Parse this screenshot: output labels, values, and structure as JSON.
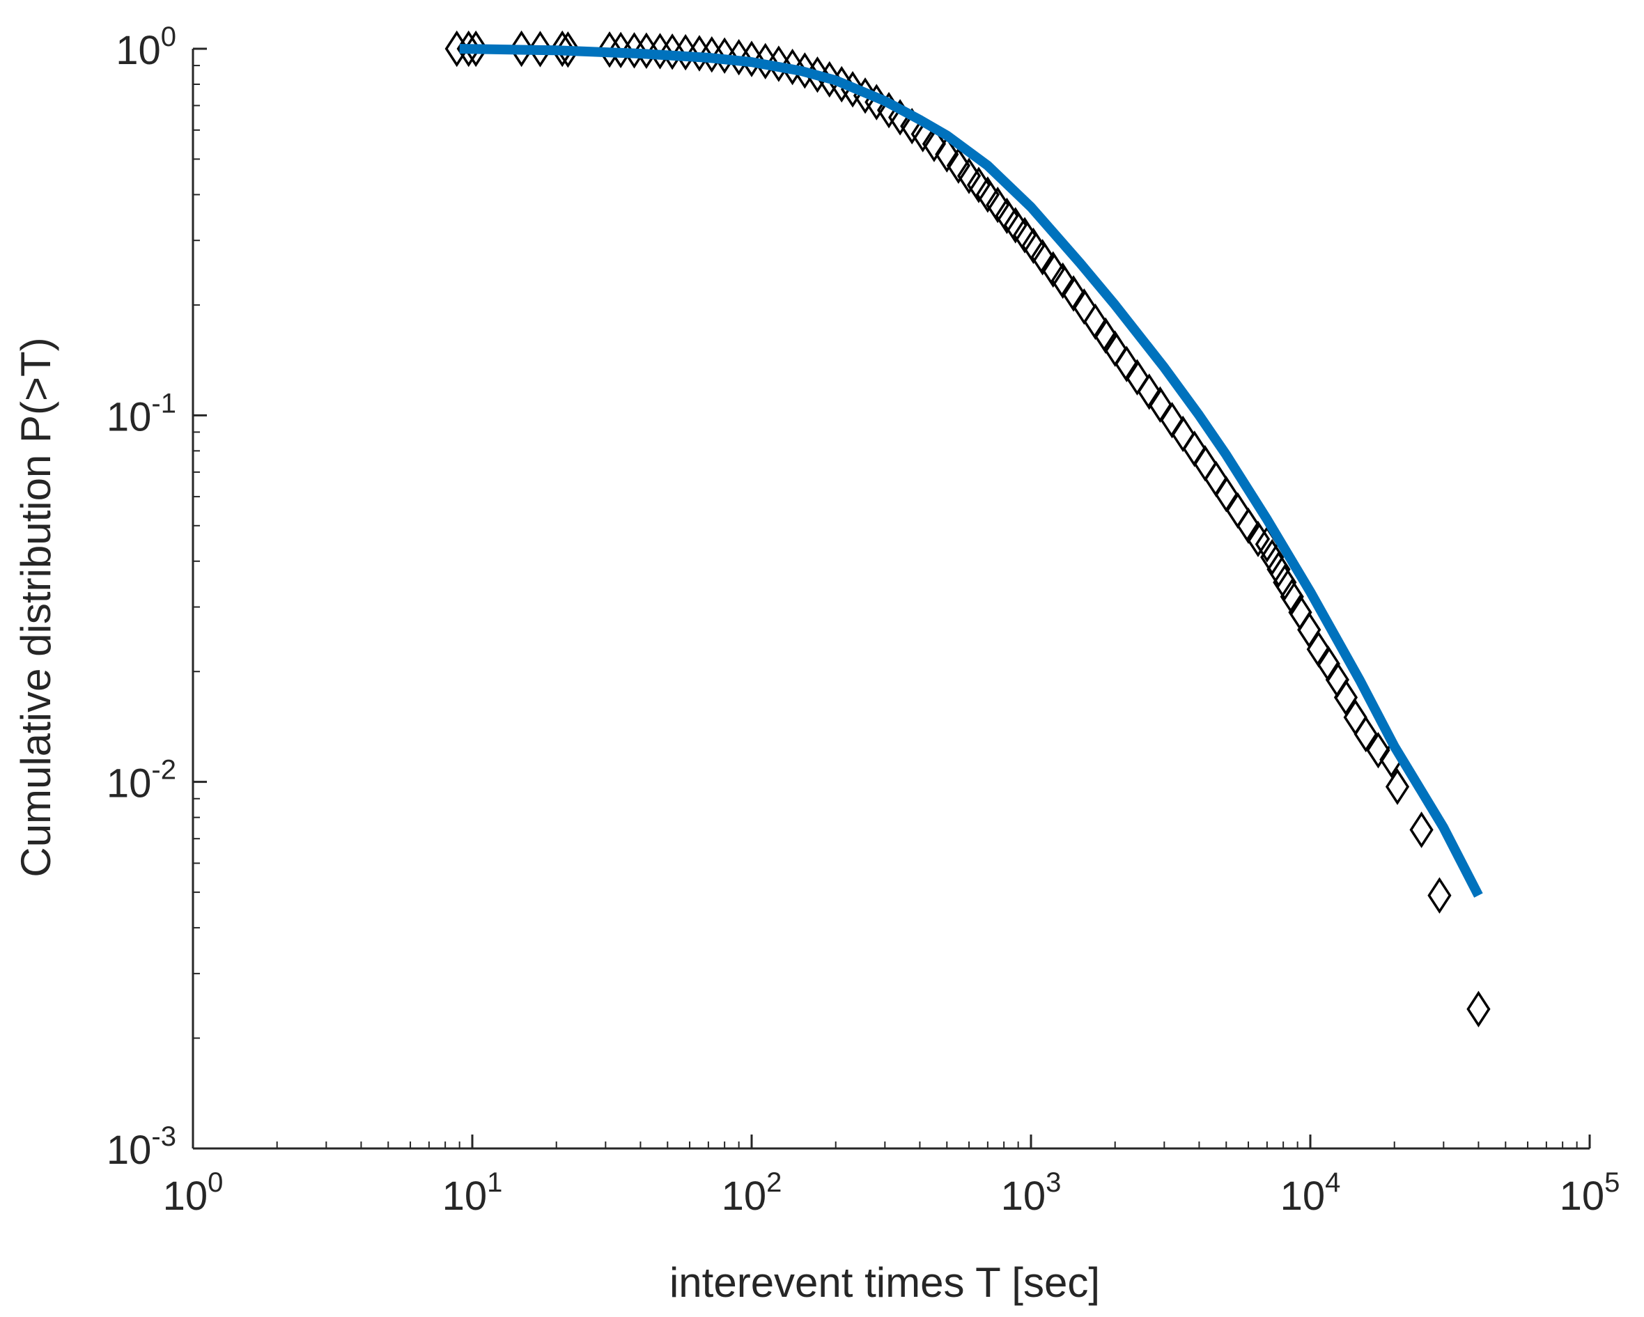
{
  "chart_data": {
    "type": "scatter",
    "xlabel": "interevent times T [sec]",
    "ylabel": "Cumulative distribution P(>T)",
    "x_scale": "log",
    "y_scale": "log",
    "xlim": [
      1,
      100000
    ],
    "ylim": [
      0.001,
      1
    ],
    "grid": false,
    "x_ticks": [
      {
        "value": 1,
        "base": "10",
        "exp": "0"
      },
      {
        "value": 10,
        "base": "10",
        "exp": "1"
      },
      {
        "value": 100,
        "base": "10",
        "exp": "2"
      },
      {
        "value": 1000,
        "base": "10",
        "exp": "3"
      },
      {
        "value": 10000,
        "base": "10",
        "exp": "4"
      },
      {
        "value": 100000,
        "base": "10",
        "exp": "5"
      }
    ],
    "y_ticks": [
      {
        "value": 0.001,
        "base": "10",
        "exp": "-3"
      },
      {
        "value": 0.01,
        "base": "10",
        "exp": "-2"
      },
      {
        "value": 0.1,
        "base": "10",
        "exp": "-1"
      },
      {
        "value": 1,
        "base": "10",
        "exp": "0"
      }
    ],
    "series": [
      {
        "marker": "diamond-open",
        "color": "#000000",
        "points": [
          [
            8.8,
            1.0
          ],
          [
            9.7,
            1.0
          ],
          [
            10.3,
            1.0
          ],
          [
            15,
            1.0
          ],
          [
            17.5,
            0.998
          ],
          [
            21,
            1.0
          ],
          [
            22,
            0.995
          ],
          [
            31,
            0.995
          ],
          [
            34,
            0.992
          ],
          [
            38,
            0.99
          ],
          [
            42,
            0.988
          ],
          [
            47,
            0.985
          ],
          [
            52,
            0.982
          ],
          [
            58,
            0.978
          ],
          [
            65,
            0.972
          ],
          [
            72,
            0.965
          ],
          [
            80,
            0.958
          ],
          [
            90,
            0.948
          ],
          [
            100,
            0.938
          ],
          [
            112,
            0.925
          ],
          [
            125,
            0.91
          ],
          [
            140,
            0.892
          ],
          [
            155,
            0.872
          ],
          [
            172,
            0.85
          ],
          [
            190,
            0.825
          ],
          [
            210,
            0.8
          ],
          [
            230,
            0.775
          ],
          [
            255,
            0.745
          ],
          [
            280,
            0.715
          ],
          [
            310,
            0.68
          ],
          [
            340,
            0.65
          ],
          [
            375,
            0.615
          ],
          [
            410,
            0.585
          ],
          [
            450,
            0.55
          ],
          [
            500,
            0.515
          ],
          [
            550,
            0.48
          ],
          [
            600,
            0.45
          ],
          [
            650,
            0.425
          ],
          [
            700,
            0.4
          ],
          [
            760,
            0.375
          ],
          [
            820,
            0.35
          ],
          [
            880,
            0.33
          ],
          [
            950,
            0.31
          ],
          [
            1020,
            0.29
          ],
          [
            1100,
            0.27
          ],
          [
            1200,
            0.25
          ],
          [
            1300,
            0.233
          ],
          [
            1420,
            0.215
          ],
          [
            1550,
            0.198
          ],
          [
            1700,
            0.18
          ],
          [
            1850,
            0.165
          ],
          [
            2000,
            0.152
          ],
          [
            2200,
            0.138
          ],
          [
            2400,
            0.127
          ],
          [
            2650,
            0.116
          ],
          [
            2900,
            0.107
          ],
          [
            3200,
            0.097
          ],
          [
            3500,
            0.089
          ],
          [
            3850,
            0.081
          ],
          [
            4200,
            0.074
          ],
          [
            4600,
            0.067
          ],
          [
            5000,
            0.061
          ],
          [
            5500,
            0.055
          ],
          [
            6000,
            0.05
          ],
          [
            6500,
            0.046
          ],
          [
            7000,
            0.0445
          ],
          [
            7300,
            0.041
          ],
          [
            7700,
            0.038
          ],
          [
            8100,
            0.035
          ],
          [
            8600,
            0.032
          ],
          [
            9200,
            0.029
          ],
          [
            9900,
            0.026
          ],
          [
            10700,
            0.023
          ],
          [
            11600,
            0.021
          ],
          [
            12500,
            0.019
          ],
          [
            13400,
            0.017
          ],
          [
            14500,
            0.015
          ],
          [
            15800,
            0.0135
          ],
          [
            17500,
            0.0122
          ],
          [
            19500,
            0.0115
          ],
          [
            20500,
            0.0097
          ],
          [
            25000,
            0.0074
          ],
          [
            29000,
            0.0049
          ],
          [
            40000,
            0.0024
          ]
        ]
      },
      {
        "marker": "line",
        "color": "#0072BD",
        "points": [
          [
            9,
            1.0
          ],
          [
            20,
            0.99
          ],
          [
            40,
            0.97
          ],
          [
            70,
            0.945
          ],
          [
            100,
            0.92
          ],
          [
            150,
            0.87
          ],
          [
            200,
            0.82
          ],
          [
            300,
            0.72
          ],
          [
            400,
            0.64
          ],
          [
            500,
            0.58
          ],
          [
            700,
            0.48
          ],
          [
            1000,
            0.37
          ],
          [
            1500,
            0.26
          ],
          [
            2000,
            0.2
          ],
          [
            3000,
            0.135
          ],
          [
            4000,
            0.1
          ],
          [
            5000,
            0.078
          ],
          [
            7000,
            0.052
          ],
          [
            10000,
            0.033
          ],
          [
            15000,
            0.019
          ],
          [
            20000,
            0.0125
          ],
          [
            30000,
            0.0075
          ],
          [
            40000,
            0.0049
          ]
        ]
      }
    ]
  }
}
